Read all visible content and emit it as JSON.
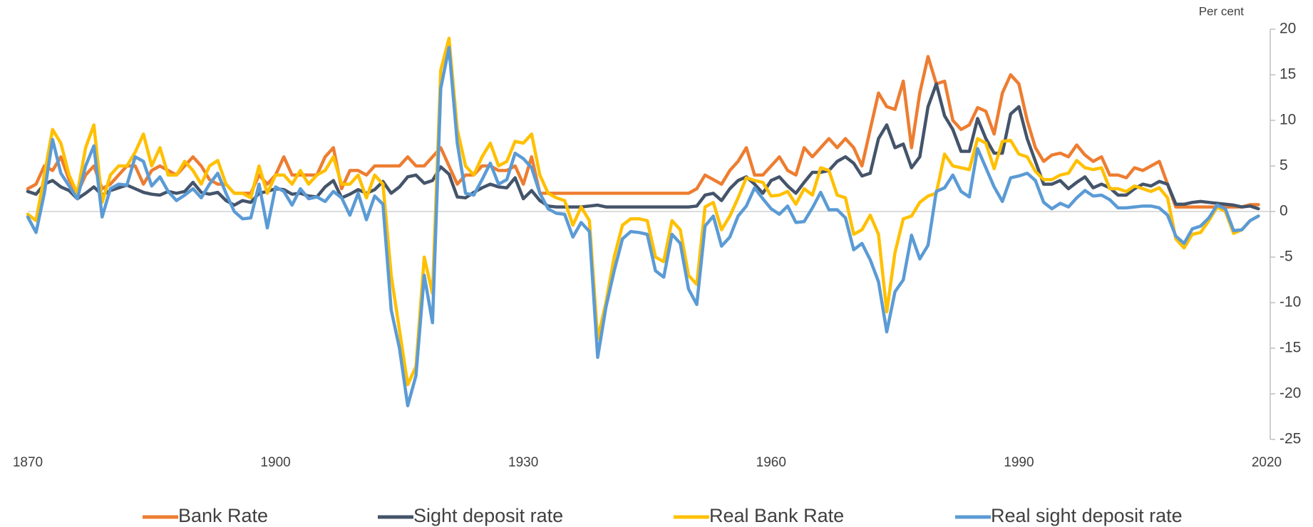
{
  "chart_data": {
    "type": "line",
    "y_axis_label": "Per cent",
    "legend": "bottom",
    "grid": false,
    "xlim": [
      1870,
      2020
    ],
    "xticks": [
      1870,
      1900,
      1930,
      1960,
      1990,
      2020
    ],
    "ylim": [
      -25,
      20
    ],
    "yticks": [
      20,
      15,
      10,
      5,
      0,
      -5,
      -10,
      -15,
      -20,
      -25
    ],
    "x": [
      1870,
      1871,
      1872,
      1873,
      1874,
      1875,
      1876,
      1877,
      1878,
      1879,
      1880,
      1881,
      1882,
      1883,
      1884,
      1885,
      1886,
      1887,
      1888,
      1889,
      1890,
      1891,
      1892,
      1893,
      1894,
      1895,
      1896,
      1897,
      1898,
      1899,
      1900,
      1901,
      1902,
      1903,
      1904,
      1905,
      1906,
      1907,
      1908,
      1909,
      1910,
      1911,
      1912,
      1913,
      1914,
      1915,
      1916,
      1917,
      1918,
      1919,
      1920,
      1921,
      1922,
      1923,
      1924,
      1925,
      1926,
      1927,
      1928,
      1929,
      1930,
      1931,
      1932,
      1933,
      1934,
      1935,
      1936,
      1937,
      1938,
      1939,
      1940,
      1941,
      1942,
      1943,
      1944,
      1945,
      1946,
      1947,
      1948,
      1949,
      1950,
      1951,
      1952,
      1953,
      1954,
      1955,
      1956,
      1957,
      1958,
      1959,
      1960,
      1961,
      1962,
      1963,
      1964,
      1965,
      1966,
      1967,
      1968,
      1969,
      1970,
      1971,
      1972,
      1973,
      1974,
      1975,
      1976,
      1977,
      1978,
      1979,
      1980,
      1981,
      1982,
      1983,
      1984,
      1985,
      1986,
      1987,
      1988,
      1989,
      1990,
      1991,
      1992,
      1993,
      1994,
      1995,
      1996,
      1997,
      1998,
      1999,
      2000,
      2001,
      2002,
      2003,
      2004,
      2005,
      2006,
      2007,
      2008,
      2009,
      2010,
      2011,
      2012,
      2013,
      2014,
      2015,
      2016,
      2017,
      2018,
      2019
    ],
    "series": [
      {
        "name": "Bank Rate",
        "color": "#ED7D31",
        "values": [
          2.5,
          3,
          5,
          4.5,
          6,
          3.5,
          2,
          4,
          5,
          2.5,
          3,
          4,
          5,
          5,
          3,
          4.5,
          5,
          4.5,
          4,
          5,
          6,
          5,
          3.5,
          3,
          3,
          2,
          2,
          2,
          4,
          3,
          4,
          6,
          4,
          4,
          4,
          4,
          6,
          7,
          2.5,
          4.5,
          4.5,
          4,
          5,
          5,
          5,
          5,
          6,
          5,
          5,
          6,
          7,
          5,
          3,
          4,
          4,
          5,
          5,
          4.5,
          4.5,
          5,
          3,
          6,
          2,
          2,
          2,
          2,
          2,
          2,
          2,
          2,
          2,
          2,
          2,
          2,
          2,
          2,
          2,
          2,
          2,
          2,
          2,
          2.5,
          4,
          3.5,
          3,
          4.5,
          5.5,
          7,
          4,
          4,
          5,
          6,
          4.5,
          4,
          7,
          6,
          7,
          8,
          7,
          8,
          7,
          5,
          9,
          13,
          11.5,
          11.2,
          14.3,
          7,
          13,
          17,
          14,
          14.3,
          10,
          9,
          9.5,
          11.4,
          11,
          8.5,
          13,
          15,
          14,
          10,
          7,
          5.5,
          6.2,
          6.4,
          6,
          7.3,
          6.2,
          5.5,
          6,
          4,
          4,
          3.7,
          4.8,
          4.5,
          5,
          5.5,
          3,
          0.5,
          0.5,
          0.5,
          0.5,
          0.5,
          0.5,
          0.5,
          0.5,
          0.5,
          0.75,
          0.75
        ]
      },
      {
        "name": "Sight deposit rate",
        "color": "#44546A",
        "values": [
          2.2,
          1.9,
          3,
          3.4,
          2.7,
          2.3,
          1.4,
          2,
          2.7,
          1.8,
          2.3,
          2.6,
          2.9,
          2.5,
          2.1,
          1.9,
          1.8,
          2.2,
          2,
          2.2,
          3.2,
          2.1,
          1.9,
          2.1,
          1.2,
          0.7,
          1.2,
          1,
          2,
          2.2,
          2.5,
          2.4,
          1.9,
          2,
          1.7,
          1.6,
          2.7,
          3.4,
          1.5,
          1.9,
          2.4,
          2,
          2.4,
          3.3,
          2,
          2.7,
          3.8,
          4,
          3.1,
          3.4,
          4.9,
          4.1,
          1.6,
          1.5,
          2.1,
          2.6,
          3,
          2.7,
          2.6,
          3.7,
          1.4,
          2.3,
          1.2,
          0.6,
          0.5,
          0.5,
          0.5,
          0.5,
          0.6,
          0.7,
          0.5,
          0.5,
          0.5,
          0.5,
          0.5,
          0.5,
          0.5,
          0.5,
          0.5,
          0.5,
          0.5,
          0.6,
          1.8,
          2,
          1.2,
          2.5,
          3.4,
          3.8,
          3,
          2,
          3.4,
          3.8,
          2.8,
          2,
          3.2,
          4.3,
          4.3,
          4.5,
          5.5,
          6,
          5.3,
          3.9,
          4.2,
          8,
          9.5,
          7,
          7.4,
          4.8,
          6,
          11.5,
          14,
          10.5,
          9,
          6.6,
          6.6,
          10.2,
          8,
          6.4,
          6.4,
          10.7,
          11.5,
          8,
          5.5,
          3,
          3,
          3.4,
          2.5,
          3.2,
          3.8,
          2.6,
          3,
          2.6,
          1.8,
          1.8,
          2.5,
          3,
          2.8,
          3.3,
          3,
          0.8,
          0.8,
          1,
          1.1,
          1,
          0.9,
          0.8,
          0.7,
          0.5,
          0.6,
          0.3
        ]
      },
      {
        "name": "Real Bank Rate",
        "color": "#FFC000",
        "values": [
          -0.3,
          -1,
          4,
          9,
          7.5,
          4,
          2,
          7,
          9.5,
          1,
          4,
          5,
          5,
          6.5,
          8.5,
          5,
          7,
          4,
          4,
          5.5,
          4.5,
          3,
          5,
          5.6,
          3,
          2,
          2,
          1.5,
          5,
          2,
          4,
          4,
          3,
          4.5,
          3,
          4,
          4.5,
          6,
          3,
          3,
          4,
          1.5,
          4,
          3,
          -7,
          -13,
          -19,
          -17,
          -5,
          -9,
          15.5,
          19,
          9,
          5,
          4,
          6,
          7.5,
          5,
          5.5,
          7.7,
          7.5,
          8.5,
          4,
          2,
          1.5,
          1.2,
          -1.5,
          0.5,
          -1,
          -14,
          -10,
          -5,
          -1.5,
          -0.8,
          -0.8,
          -1,
          -5,
          -5.5,
          -1,
          -2,
          -7,
          -8,
          0.5,
          1,
          -2,
          -0.5,
          1.5,
          3.7,
          3.4,
          3.2,
          1.7,
          1.8,
          2.2,
          0.8,
          2.5,
          1.8,
          4.8,
          4.5,
          1.8,
          1.5,
          -2.5,
          -2,
          -0.4,
          -2.5,
          -11,
          -4.5,
          -0.8,
          -0.5,
          1,
          1.7,
          2,
          6.3,
          5,
          4.8,
          4.6,
          8,
          7.5,
          4.7,
          7.7,
          7.8,
          6.3,
          6,
          4.4,
          3.5,
          3.5,
          4,
          4.2,
          5.6,
          4.8,
          4.6,
          4.8,
          2.5,
          2.5,
          2.2,
          2.8,
          2.5,
          2.2,
          2.6,
          1.5,
          -3,
          -4,
          -2.5,
          -2.3,
          -1,
          0.5,
          0,
          -2.4,
          -2,
          -1,
          -0.5
        ]
      },
      {
        "name": "Real sight deposit rate",
        "color": "#5B9BD5",
        "values": [
          -0.6,
          -2.3,
          2,
          7.9,
          4.2,
          2.8,
          1.4,
          5,
          7.2,
          -0.6,
          2.5,
          3,
          2.9,
          6,
          5.5,
          2.8,
          3.8,
          2.2,
          1.2,
          1.8,
          2.5,
          1.5,
          3,
          4.2,
          2,
          0,
          -0.8,
          -0.7,
          3,
          -1.8,
          2.7,
          2.2,
          0.7,
          2.5,
          1.4,
          1.6,
          1.1,
          2.2,
          1.5,
          -0.4,
          2,
          -0.9,
          1.7,
          0.8,
          -10.8,
          -15,
          -21.3,
          -18,
          -7,
          -12.2,
          13.5,
          18,
          7.5,
          2,
          1.8,
          3.5,
          5.3,
          3,
          3.5,
          6.4,
          5.8,
          4.8,
          2,
          0.3,
          -0.2,
          -0.3,
          -2.8,
          -1.2,
          -2.2,
          -16,
          -10.5,
          -6.5,
          -3,
          -2.2,
          -2.3,
          -2.5,
          -6.5,
          -7.2,
          -2.5,
          -3.5,
          -8.5,
          -10.2,
          -1.6,
          -0.5,
          -3.8,
          -2.8,
          -0.5,
          0.6,
          2.6,
          1.4,
          0.3,
          -0.3,
          0.6,
          -1.2,
          -1.1,
          0.4,
          2.1,
          0.2,
          0.2,
          -0.7,
          -4.2,
          -3.5,
          -5.3,
          -7.7,
          -13.2,
          -8.8,
          -7.5,
          -2.6,
          -5.2,
          -3.7,
          2.2,
          2.6,
          4,
          2.2,
          1.6,
          6.9,
          4.8,
          2.7,
          1.1,
          3.7,
          3.9,
          4.2,
          3.4,
          1,
          0.3,
          0.9,
          0.5,
          1.5,
          2.3,
          1.7,
          1.8,
          1.3,
          0.4,
          0.4,
          0.5,
          0.6,
          0.6,
          0.4,
          -0.4,
          -2.7,
          -3.5,
          -1.9,
          -1.6,
          -0.7,
          0.7,
          0.3,
          -2.1,
          -2,
          -1,
          -0.5
        ]
      }
    ]
  }
}
